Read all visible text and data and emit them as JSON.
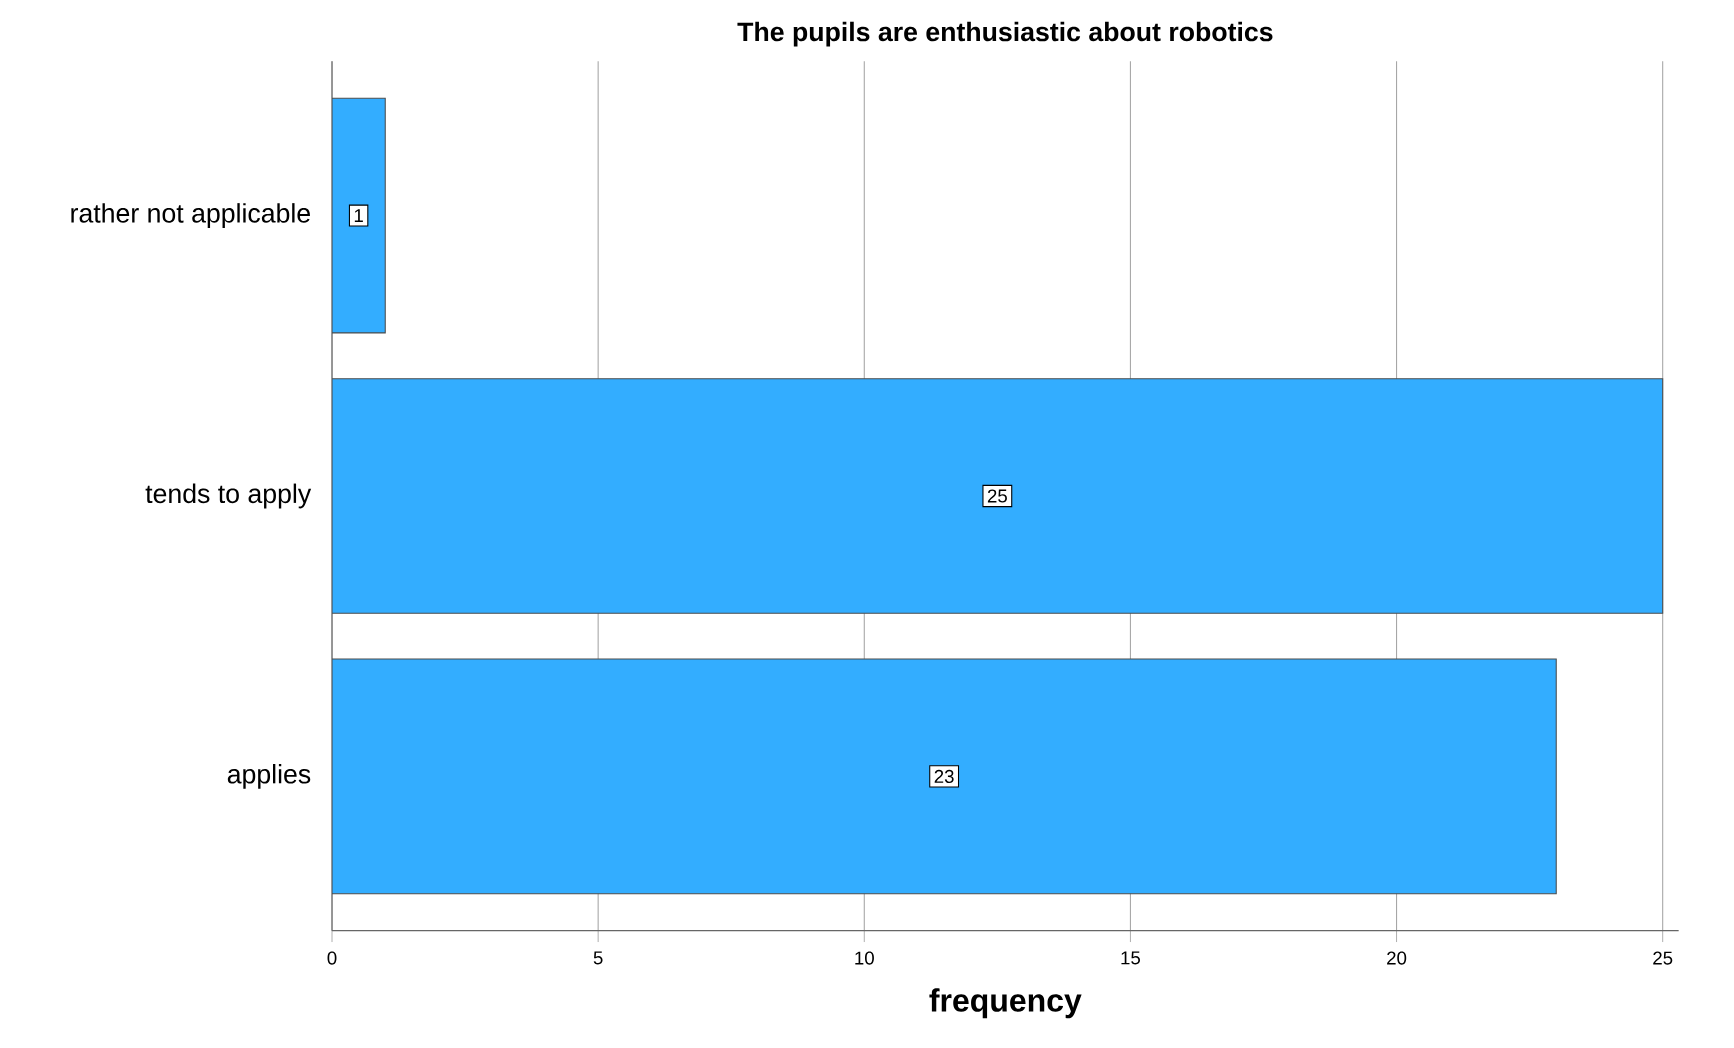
{
  "chart_data": {
    "type": "bar",
    "orientation": "horizontal",
    "title": "The pupils are enthusiastic about robotics",
    "xlabel": "frequency",
    "categories": [
      "rather not applicable",
      "tends to apply",
      "applies"
    ],
    "values": [
      1,
      25,
      23
    ],
    "color": "#33adff",
    "xlim": [
      0,
      25.3
    ],
    "xticks": [
      0,
      5,
      10,
      15,
      20,
      25
    ],
    "grid": "x",
    "data_labels": true
  }
}
